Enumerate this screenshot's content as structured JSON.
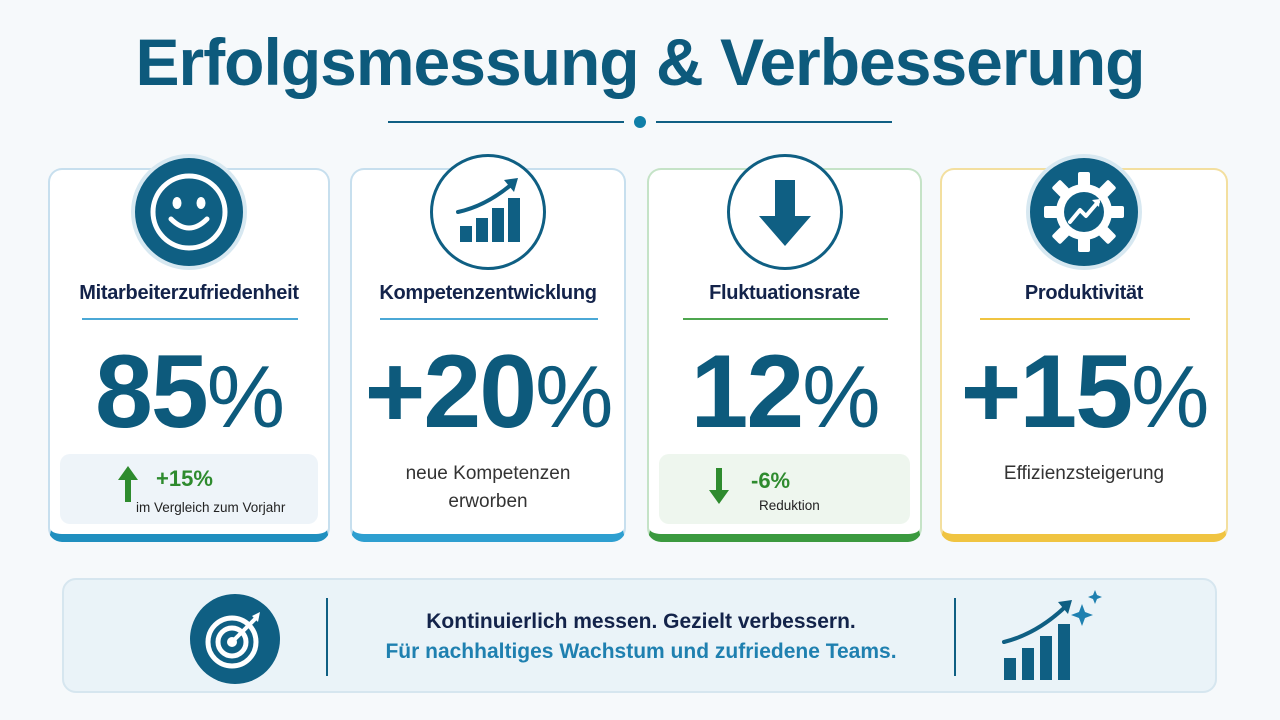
{
  "title": "Erfolgsmessung & Verbesserung",
  "colors": {
    "primary": "#0f5f83",
    "navy": "#13234a",
    "green": "#2e8b2e",
    "blue_accent": "#1f8fbf",
    "yellow_accent": "#f0c441"
  },
  "cards": [
    {
      "icon": "smiley-icon",
      "title": "Mitarbeiterzufriedenheit",
      "value": "85",
      "unit": "%",
      "change": {
        "direction": "up",
        "value": "+15%",
        "label": "im Vergleich zum Vorjahr"
      }
    },
    {
      "icon": "growth-chart-icon",
      "title": "Kompetenzentwicklung",
      "value": "+20",
      "unit": "%",
      "description_lines": [
        "neue Kompetenzen",
        "erworben"
      ]
    },
    {
      "icon": "down-arrow-icon",
      "title": "Fluktuationsrate",
      "value": "12",
      "unit": "%",
      "change": {
        "direction": "down",
        "value": "-6%",
        "label": "Reduktion"
      }
    },
    {
      "icon": "gear-growth-icon",
      "title": "Produktivität",
      "value": "+15",
      "unit": "%",
      "description_lines": [
        "Effizienzsteigerung"
      ]
    }
  ],
  "banner": {
    "line1": "Kontinuierlich messen. Gezielt verbessern.",
    "line2": "Für nachhaltiges Wachstum und zufriedene Teams.",
    "left_icon": "target-icon",
    "right_icon": "growth-bars-icon"
  }
}
